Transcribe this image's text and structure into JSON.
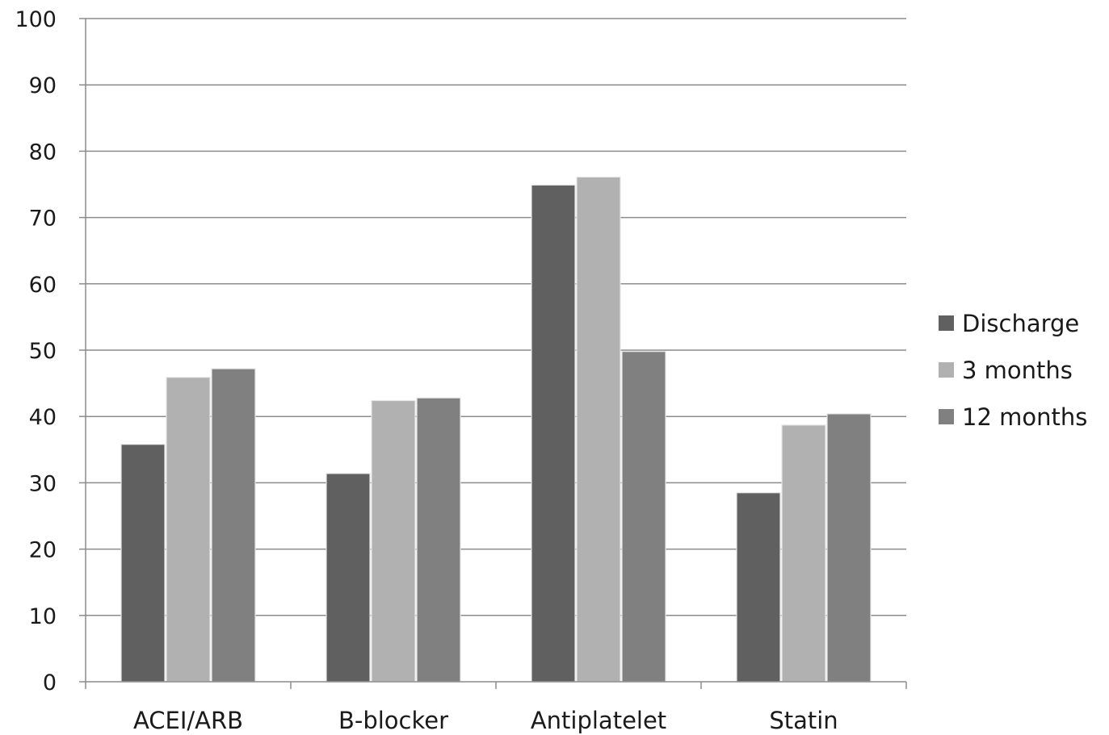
{
  "chart_data": {
    "type": "bar",
    "categories": [
      "ACEI/ARB",
      "B-blocker",
      "Antiplatelet",
      "Statin"
    ],
    "series": [
      {
        "name": "Discharge",
        "values": [
          35.8,
          31.4,
          74.9,
          28.5
        ]
      },
      {
        "name": "3 months",
        "values": [
          45.9,
          42.4,
          76.1,
          38.7
        ]
      },
      {
        "name": "12 months",
        "values": [
          47.2,
          42.8,
          49.8,
          40.4
        ]
      }
    ],
    "colors": [
      "#606060",
      "#b1b1b1",
      "#808080"
    ],
    "ylim": [
      0,
      100
    ],
    "yticks": [
      "0",
      "10",
      "20",
      "30",
      "40",
      "50",
      "60",
      "70",
      "80",
      "90",
      "100"
    ],
    "grid": true,
    "legend": "right"
  }
}
